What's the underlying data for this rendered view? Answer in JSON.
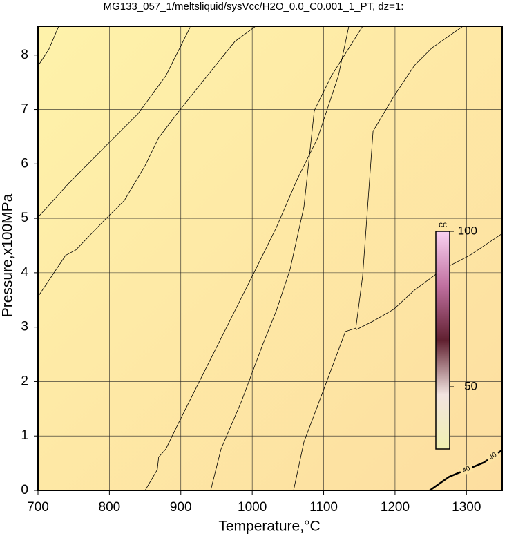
{
  "chart_data": {
    "type": "contour",
    "title": "MG133_057_1/meltsliquid/sysVcc/H2O_0.0_C0.001_1_PT, dz=1:",
    "x_label": "Temperature,°C",
    "y_label": "Pressure,x100MPa",
    "xlim": [
      700,
      1350
    ],
    "ylim": [
      0,
      8.53
    ],
    "xticks": [
      700,
      800,
      900,
      1000,
      1100,
      1200,
      1300
    ],
    "yticks": [
      0,
      1,
      2,
      3,
      4,
      5,
      6,
      7,
      8
    ],
    "grid": true,
    "background_colors": [
      "#fef2aa",
      "#fddea0"
    ],
    "line_color": "#000000",
    "contours": [
      {
        "x": [
          700,
          715,
          729
        ],
        "y": [
          7.8,
          8.1,
          8.53
        ]
      },
      {
        "x": [
          700,
          714.5,
          743.5,
          791.9,
          840,
          879,
          913
        ],
        "y": [
          5.02,
          5.23,
          5.65,
          6.29,
          6.92,
          7.62,
          8.51
        ]
      },
      {
        "x": [
          700,
          738.7,
          753,
          791.9,
          821,
          850,
          869,
          898,
          937,
          975.7,
          1004.7
        ],
        "y": [
          3.56,
          4.32,
          4.42,
          4.95,
          5.33,
          5.97,
          6.48,
          6.98,
          7.62,
          8.25,
          8.53
        ]
      },
      {
        "x": [
          850,
          867,
          869,
          879,
          898,
          937,
          975.7,
          1004.7,
          1033.7,
          1062.7,
          1091.7,
          1120.7,
          1135.3
        ],
        "y": [
          0,
          0.38,
          0.61,
          0.76,
          1.27,
          2.29,
          3.3,
          4.06,
          4.83,
          5.71,
          6.48,
          7.62,
          8.53
        ]
      },
      {
        "x": [
          941.8,
          956.3,
          985.3,
          1014.4,
          1033.7,
          1053,
          1072.4,
          1086.9,
          1111,
          1154.6
        ],
        "y": [
          0,
          0.76,
          1.65,
          2.67,
          3.3,
          4.06,
          5.21,
          6.98,
          7.62,
          8.53
        ]
      },
      {
        "x": [
          1057.9,
          1072.4,
          1101.4,
          1130.4,
          1145,
          1154.6,
          1169.2,
          1198.2,
          1227.2,
          1251.4,
          1295
        ],
        "y": [
          0,
          0.89,
          1.9,
          2.92,
          2.98,
          3.94,
          6.6,
          7.24,
          7.81,
          8.13,
          8.53
        ]
      },
      {
        "x": [
          1145,
          1169.2,
          1198.2,
          1227.2,
          1266,
          1304.6,
          1350
        ],
        "y": [
          2.95,
          3.11,
          3.33,
          3.68,
          4.06,
          4.32,
          4.72
        ]
      },
      {
        "level": 40,
        "x": [
          1248.5,
          1275.6,
          1324,
          1350
        ],
        "y": [
          0,
          0.25,
          0.51,
          0.74
        ]
      }
    ],
    "colorbar": {
      "label": "cc",
      "lim": [
        30,
        100
      ],
      "ticks": [
        50,
        100
      ],
      "colors": [
        "#f0f0b0",
        "#f2e4e0",
        "#602030",
        "#c070a0",
        "#fad2f2"
      ]
    }
  }
}
